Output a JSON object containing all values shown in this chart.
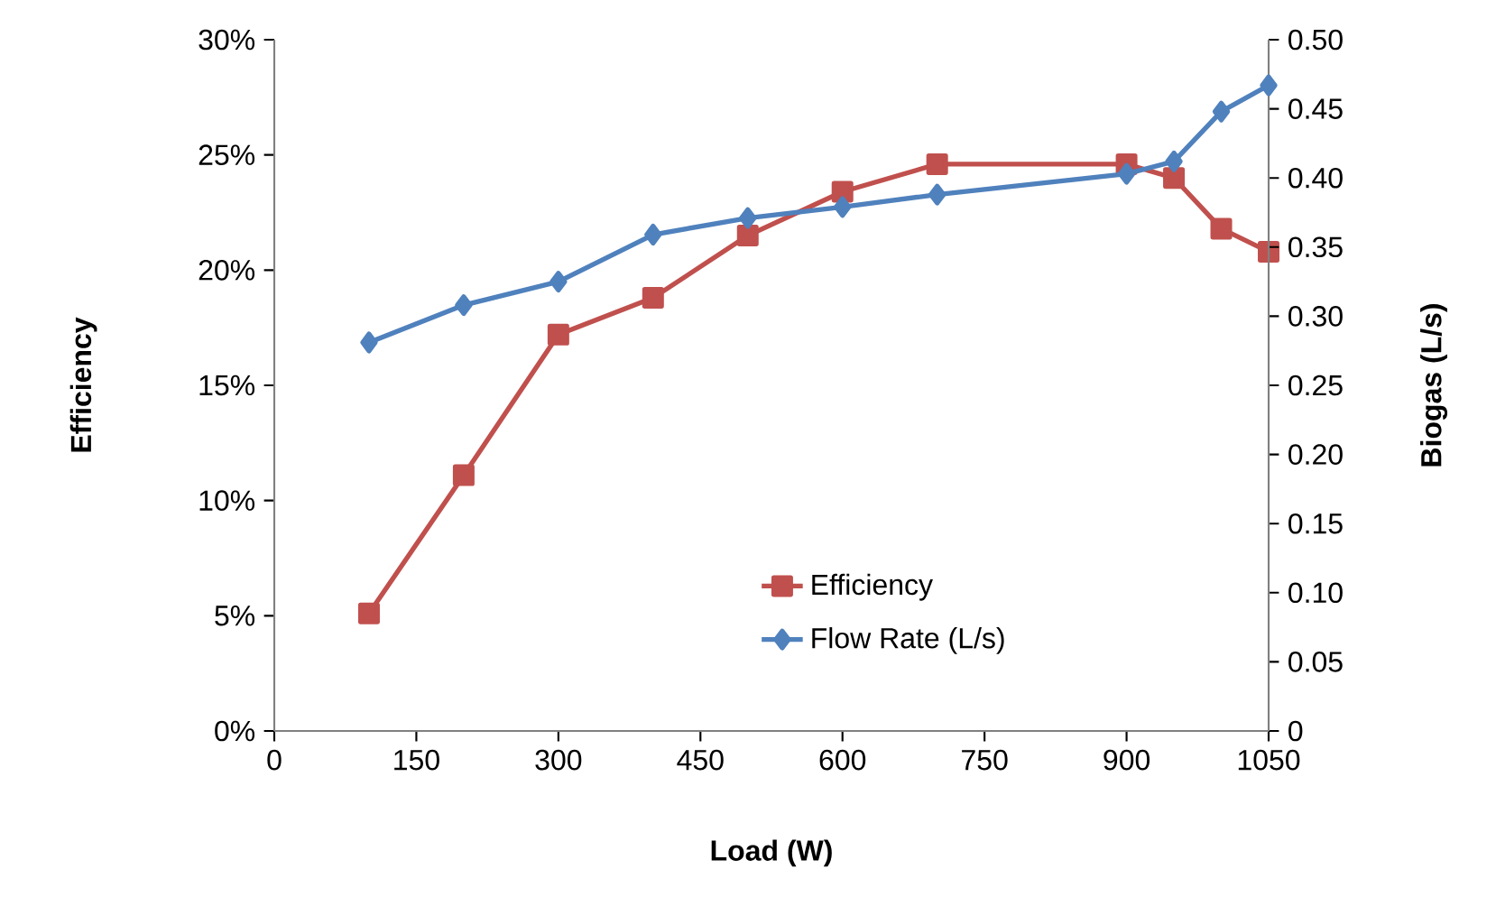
{
  "chart_data": {
    "type": "line",
    "xlabel": "Load (W)",
    "ylabel": "Efficiency",
    "y2label": "Biogas (L/s)",
    "xlim": [
      0,
      1050
    ],
    "xticks": [
      0,
      150,
      300,
      450,
      600,
      750,
      900,
      1050
    ],
    "ylim": [
      0,
      30
    ],
    "yticks": [
      {
        "value": 0,
        "label": "0%"
      },
      {
        "value": 5,
        "label": "5%"
      },
      {
        "value": 10,
        "label": "10%"
      },
      {
        "value": 15,
        "label": "15%"
      },
      {
        "value": 20,
        "label": "20%"
      },
      {
        "value": 25,
        "label": "25%"
      },
      {
        "value": 30,
        "label": "30%"
      }
    ],
    "y2lim": [
      0,
      0.5
    ],
    "y2ticks": [
      0,
      {
        "value": 0.05,
        "label": "0.05"
      },
      {
        "value": 0.1,
        "label": "0.10"
      },
      {
        "value": 0.15,
        "label": "0.15"
      },
      {
        "value": 0.2,
        "label": "0.20"
      },
      {
        "value": 0.25,
        "label": "0.25"
      },
      {
        "value": 0.3,
        "label": "0.30"
      },
      {
        "value": 0.35,
        "label": "0.35"
      },
      {
        "value": 0.4,
        "label": "0.40"
      },
      {
        "value": 0.45,
        "label": "0.45"
      },
      {
        "value": 0.5,
        "label": "0.50"
      }
    ],
    "legend": "bottom right",
    "grid": false,
    "series": [
      {
        "name": "Efficiency",
        "color": "#c0504d",
        "marker": "square",
        "x": [
          100,
          200,
          300,
          400,
          500,
          600,
          700,
          900,
          950,
          1000,
          1050
        ],
        "values": [
          5.1,
          11.1,
          17.2,
          18.8,
          21.5,
          23.4,
          24.6,
          24.6,
          24.0,
          21.8,
          20.8
        ]
      },
      {
        "name": "Flow Rate (L/s)",
        "color": "#4f81bd",
        "marker": "diamond",
        "axis": "y2",
        "x": [
          100,
          200,
          300,
          400,
          500,
          600,
          700,
          900,
          950,
          1000,
          1050
        ],
        "values": [
          0.281,
          0.308,
          0.325,
          0.359,
          0.371,
          0.379,
          0.388,
          0.403,
          0.412,
          0.448,
          0.467
        ]
      }
    ]
  }
}
